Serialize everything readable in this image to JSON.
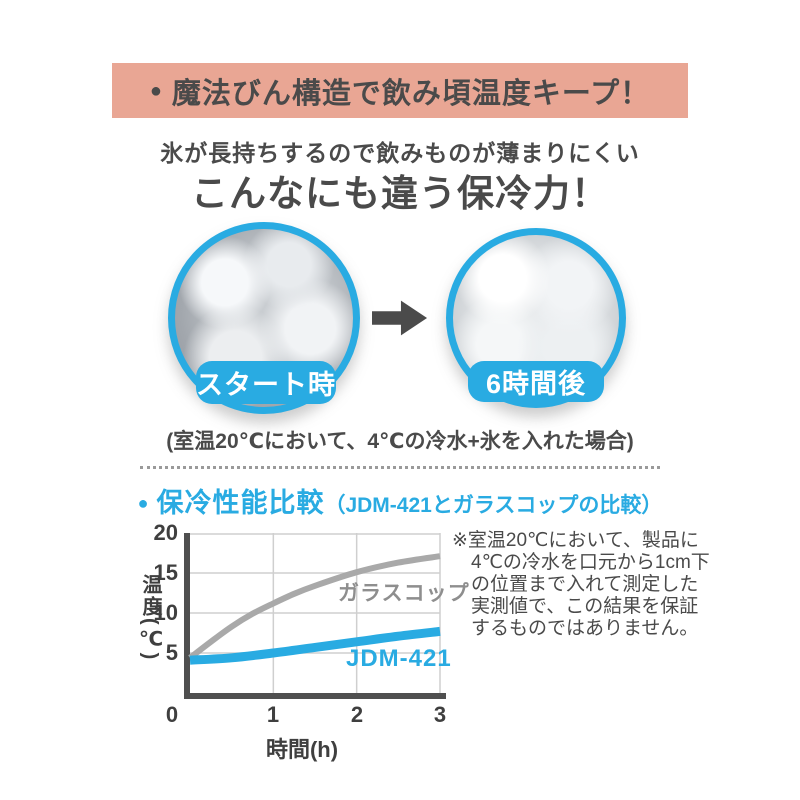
{
  "banner": {
    "bullet": "●",
    "label": "魔法びん構造で飲み頃温度キープ！",
    "bg_color": "#E9A694",
    "text_color": "#4A4A4A"
  },
  "intro": {
    "subtitle": "氷が長持ちするので飲みものが薄まりにくい",
    "title": "こんなにも違う保冷力！"
  },
  "comparison": {
    "start_label": "スタート時",
    "end_label": "6時間後",
    "condition_note": "(室温20℃において、4℃の冷水+氷を入れた場合)",
    "accent_color": "#29ABE2"
  },
  "section_header": {
    "bullet": "●",
    "title": "保冷性能比較",
    "subtitle": "（JDM-421とガラスコップの比較）",
    "color": "#29ABE2"
  },
  "chart_data": {
    "type": "line",
    "title": "保冷性能比較（JDM-421とガラスコップの比較）",
    "xlabel": "時間(h)",
    "ylabel": "温度(℃)",
    "xlim": [
      0,
      3
    ],
    "ylim": [
      0,
      20
    ],
    "x_ticks": [
      0,
      1,
      2,
      3
    ],
    "y_ticks": [
      0,
      5,
      10,
      15,
      20
    ],
    "grid": true,
    "legend_position": "labels-on-lines",
    "series": [
      {
        "name": "ガラスコップ",
        "color": "#A9A9A9",
        "stroke_width": 6,
        "x": [
          0,
          0.25,
          0.5,
          0.75,
          1,
          1.25,
          1.5,
          2,
          2.5,
          3
        ],
        "values": [
          4.4,
          6.4,
          8.3,
          9.9,
          11.2,
          12.4,
          13.4,
          15.1,
          16.3,
          17.1
        ]
      },
      {
        "name": "JDM-421",
        "color": "#29ABE2",
        "stroke_width": 9,
        "x": [
          0,
          0.5,
          1,
          1.5,
          2,
          2.5,
          3
        ],
        "values": [
          4.1,
          4.4,
          5.0,
          5.7,
          6.4,
          7.1,
          7.7
        ]
      }
    ]
  },
  "chart_note": "※室温20℃において、製品に4℃の冷水を口元から1cm下の位置まで入れて測定した実測値で、この結果を保証するものではありません。"
}
